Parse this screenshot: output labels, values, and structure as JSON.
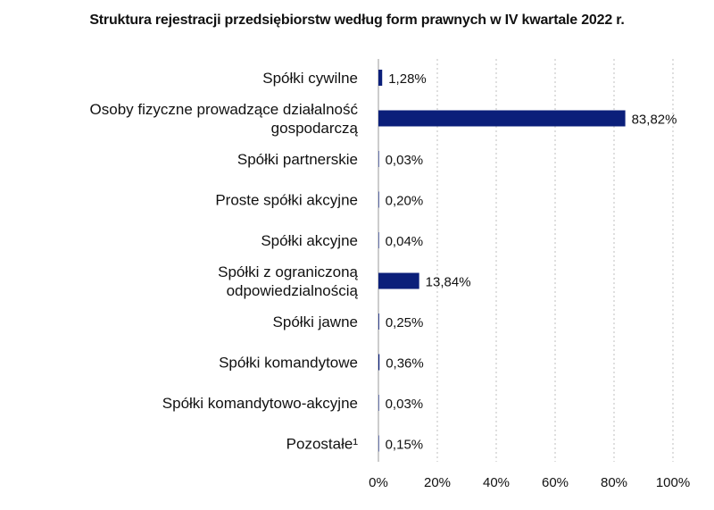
{
  "chart_data": {
    "type": "bar",
    "orientation": "horizontal",
    "title": "Struktura rejestracji przedsiębiorstw według form prawnych w IV kwartale 2022 r.",
    "xlabel": "",
    "ylabel": "",
    "categories": [
      [
        "Spółki cywilne"
      ],
      [
        "Osoby fizyczne prowadzące działalność",
        "gospodarczą"
      ],
      [
        "Spółki partnerskie"
      ],
      [
        "Proste spółki akcyjne"
      ],
      [
        "Spółki akcyjne"
      ],
      [
        "Spółki z ograniczoną",
        "odpowiedzialnością"
      ],
      [
        "Spółki jawne"
      ],
      [
        "Spółki komandytowe"
      ],
      [
        "Spółki komandytowo-akcyjne"
      ],
      [
        "Pozostałe¹"
      ]
    ],
    "values": [
      1.28,
      83.82,
      0.03,
      0.2,
      0.04,
      13.84,
      0.25,
      0.36,
      0.03,
      0.15
    ],
    "value_labels": [
      "1,28%",
      "83,82%",
      "0,03%",
      "0,20%",
      "0,04%",
      "13,84%",
      "0,25%",
      "0,36%",
      "0,03%",
      "0,15%"
    ],
    "xlim": [
      0,
      100
    ],
    "xticks": [
      0,
      20,
      40,
      60,
      80,
      100
    ],
    "xtick_labels": [
      "0%",
      "20%",
      "40%",
      "60%",
      "80%",
      "100%"
    ],
    "grid": "vertical-dashed",
    "legend": "none",
    "bar_color": "#0b1f7a"
  }
}
